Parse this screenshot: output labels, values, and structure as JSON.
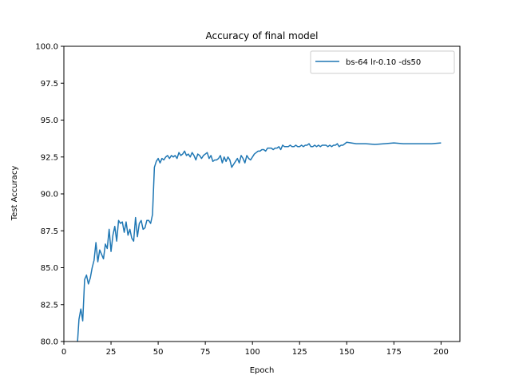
{
  "chart_data": {
    "type": "line",
    "title": "Accuracy of final model",
    "xlabel": "Epoch",
    "ylabel": "Test Accuracy",
    "xlim": [
      0,
      210
    ],
    "ylim": [
      80.0,
      100.0
    ],
    "xticks": [
      0,
      25,
      50,
      75,
      100,
      125,
      150,
      175,
      200
    ],
    "yticks": [
      80.0,
      82.5,
      85.0,
      87.5,
      90.0,
      92.5,
      95.0,
      97.5,
      100.0
    ],
    "xtick_labels": [
      "0",
      "25",
      "50",
      "75",
      "100",
      "125",
      "150",
      "175",
      "200"
    ],
    "ytick_labels": [
      "80.0",
      "82.5",
      "85.0",
      "87.5",
      "90.0",
      "92.5",
      "95.0",
      "97.5",
      "100.0"
    ],
    "grid": false,
    "legend_position": "top-right",
    "series": [
      {
        "name": "bs-64 lr-0.10 -ds50",
        "color": "#1f77b4",
        "x": [
          7,
          8,
          9,
          10,
          11,
          12,
          13,
          14,
          15,
          16,
          17,
          18,
          19,
          20,
          21,
          22,
          23,
          24,
          25,
          26,
          27,
          28,
          29,
          30,
          31,
          32,
          33,
          34,
          35,
          36,
          37,
          38,
          39,
          40,
          41,
          42,
          43,
          44,
          45,
          46,
          47,
          48,
          49,
          50,
          51,
          52,
          53,
          54,
          55,
          56,
          57,
          58,
          59,
          60,
          61,
          62,
          63,
          64,
          65,
          66,
          67,
          68,
          69,
          70,
          71,
          72,
          73,
          74,
          75,
          76,
          77,
          78,
          79,
          80,
          81,
          82,
          83,
          84,
          85,
          86,
          87,
          88,
          89,
          90,
          91,
          92,
          93,
          94,
          95,
          96,
          97,
          98,
          99,
          100,
          101,
          102,
          103,
          104,
          105,
          106,
          107,
          108,
          109,
          110,
          111,
          112,
          113,
          114,
          115,
          116,
          117,
          118,
          119,
          120,
          121,
          122,
          123,
          124,
          125,
          126,
          127,
          128,
          129,
          130,
          131,
          132,
          133,
          134,
          135,
          136,
          137,
          138,
          139,
          140,
          141,
          142,
          143,
          144,
          145,
          146,
          147,
          148,
          149,
          150,
          155,
          160,
          165,
          170,
          175,
          180,
          185,
          190,
          195,
          200
        ],
        "y": [
          79.5,
          81.5,
          82.2,
          81.4,
          84.2,
          84.5,
          83.9,
          84.3,
          85.0,
          85.5,
          86.7,
          85.4,
          86.2,
          85.9,
          85.6,
          86.6,
          86.3,
          87.6,
          86.1,
          87.2,
          87.8,
          86.8,
          88.2,
          88.0,
          88.1,
          87.4,
          88.1,
          87.2,
          87.6,
          87.0,
          86.8,
          88.4,
          87.1,
          88.0,
          88.2,
          87.6,
          87.7,
          88.2,
          88.2,
          88.0,
          88.6,
          91.8,
          92.2,
          92.4,
          92.1,
          92.4,
          92.3,
          92.5,
          92.6,
          92.4,
          92.6,
          92.5,
          92.6,
          92.4,
          92.8,
          92.6,
          92.7,
          92.9,
          92.6,
          92.7,
          92.5,
          92.8,
          92.6,
          92.3,
          92.7,
          92.6,
          92.4,
          92.6,
          92.7,
          92.8,
          92.4,
          92.6,
          92.2,
          92.3,
          92.3,
          92.4,
          92.6,
          92.1,
          92.5,
          92.2,
          92.5,
          92.3,
          91.8,
          92.0,
          92.2,
          92.4,
          92.1,
          92.6,
          92.4,
          92.1,
          92.6,
          92.4,
          92.3,
          92.5,
          92.7,
          92.8,
          92.9,
          92.9,
          93.0,
          93.0,
          92.9,
          93.1,
          93.1,
          93.1,
          93.0,
          93.1,
          93.1,
          93.2,
          93.0,
          93.3,
          93.2,
          93.2,
          93.2,
          93.3,
          93.2,
          93.2,
          93.3,
          93.2,
          93.2,
          93.3,
          93.2,
          93.3,
          93.3,
          93.4,
          93.2,
          93.2,
          93.3,
          93.2,
          93.3,
          93.2,
          93.3,
          93.3,
          93.3,
          93.2,
          93.3,
          93.2,
          93.3,
          93.3,
          93.4,
          93.2,
          93.3,
          93.3,
          93.4,
          93.5,
          93.4,
          93.4,
          93.35,
          93.4,
          93.45,
          93.4,
          93.4,
          93.4,
          93.4,
          93.45
        ]
      }
    ]
  }
}
